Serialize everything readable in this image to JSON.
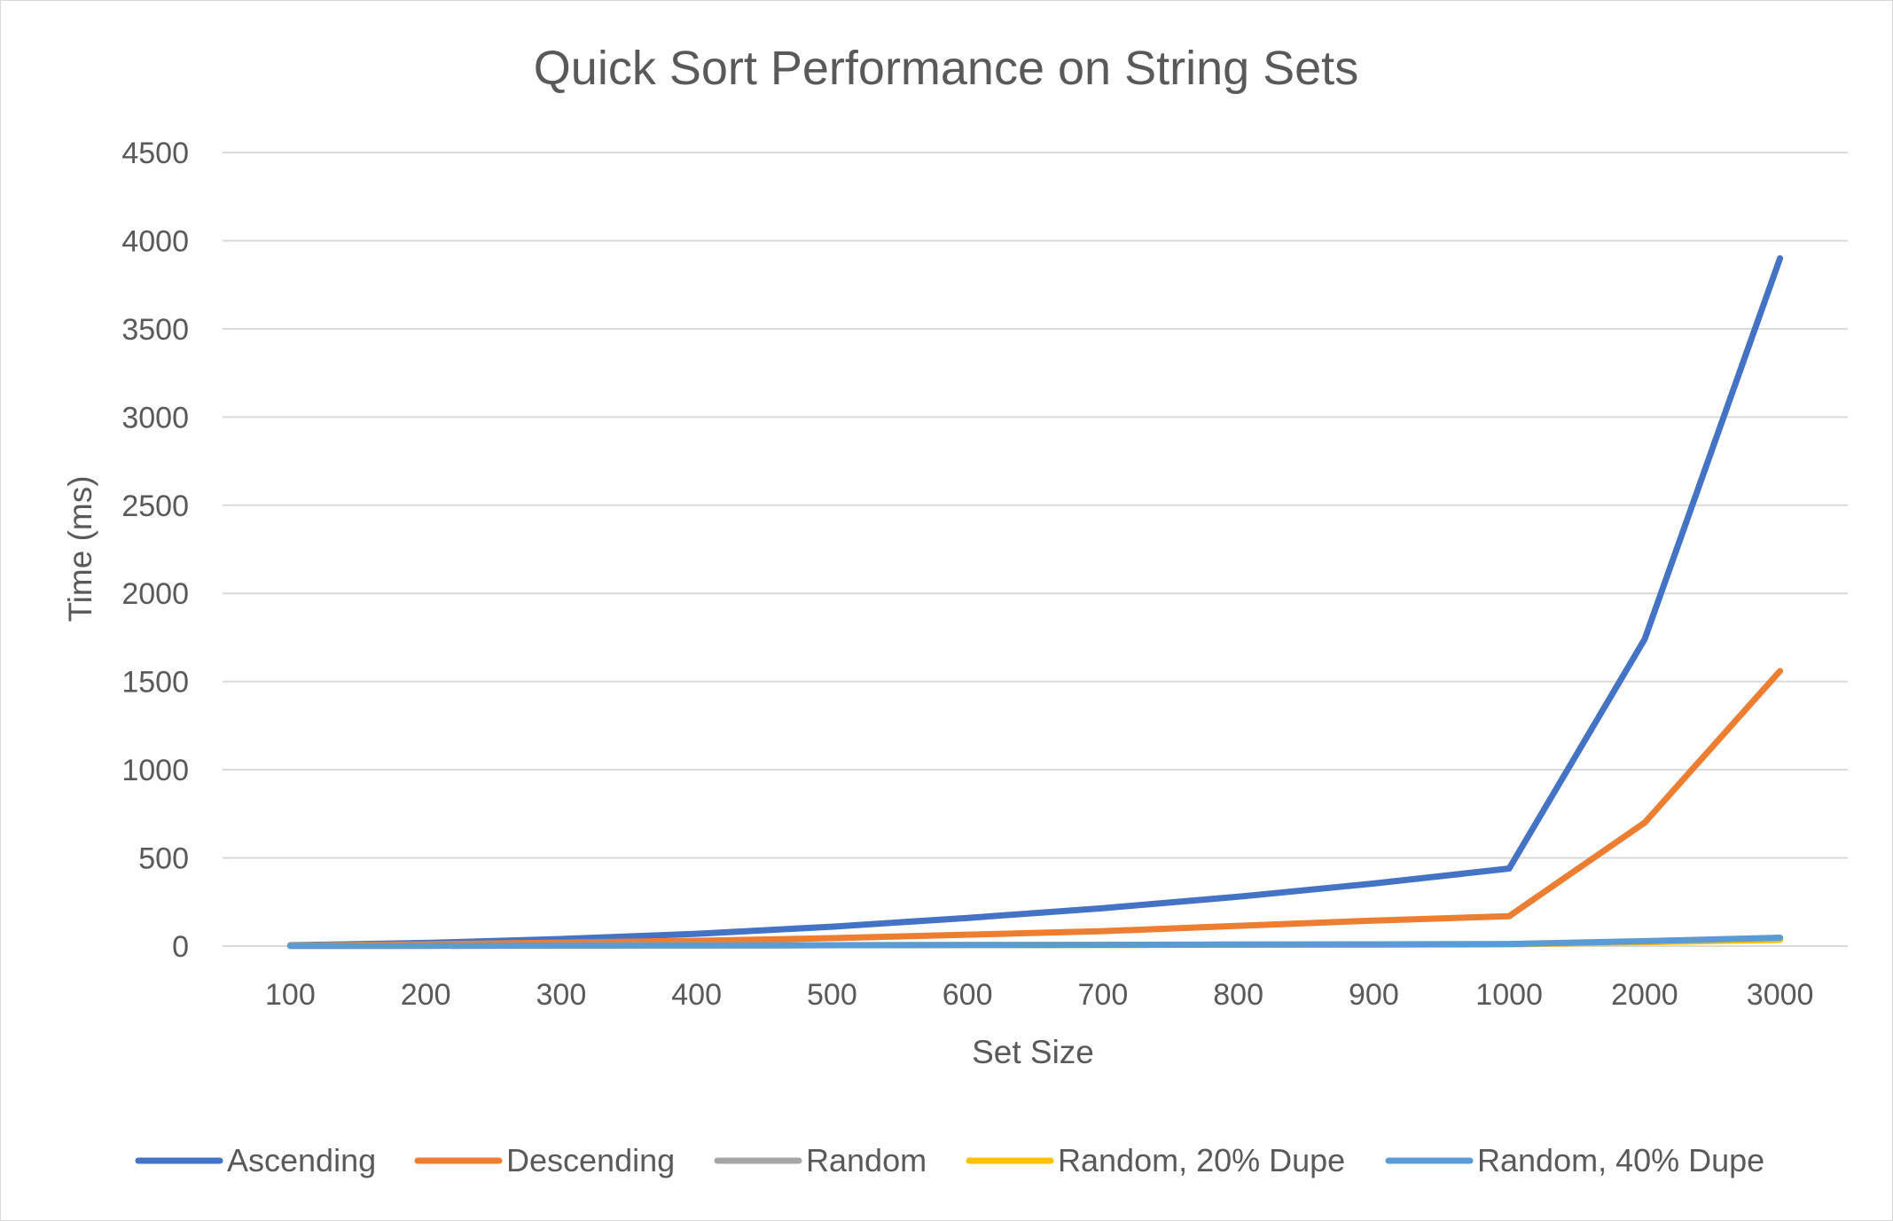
{
  "chart_data": {
    "type": "line",
    "title": "Quick Sort Performance on String Sets",
    "xlabel": "Set Size",
    "ylabel": "Time (ms)",
    "categories": [
      "100",
      "200",
      "300",
      "400",
      "500",
      "600",
      "700",
      "800",
      "900",
      "1000",
      "2000",
      "3000"
    ],
    "ylim": [
      0,
      4500
    ],
    "yticks": [
      0,
      500,
      1000,
      1500,
      2000,
      2500,
      3000,
      3500,
      4000,
      4500
    ],
    "grid": "horizontal",
    "legend_position": "bottom",
    "series": [
      {
        "name": "Ascending",
        "color": "#4472c4",
        "values": [
          5,
          18,
          40,
          70,
          110,
          160,
          215,
          280,
          355,
          440,
          1740,
          3900
        ]
      },
      {
        "name": "Descending",
        "color": "#ed7d31",
        "values": [
          3,
          10,
          20,
          30,
          45,
          65,
          85,
          115,
          145,
          170,
          700,
          1560
        ]
      },
      {
        "name": "Random",
        "color": "#a5a5a5",
        "values": [
          1,
          2,
          3,
          4,
          5,
          6,
          7,
          8,
          9,
          10,
          25,
          40
        ]
      },
      {
        "name": "Random, 20% Dupe",
        "color": "#ffc000",
        "values": [
          1,
          2,
          3,
          4,
          5,
          6,
          7,
          8,
          9,
          10,
          22,
          35
        ]
      },
      {
        "name": "Random, 40% Dupe",
        "color": "#5b9bd5",
        "values": [
          1,
          2,
          3,
          4,
          5,
          6,
          7,
          9,
          10,
          12,
          28,
          48
        ]
      }
    ]
  }
}
